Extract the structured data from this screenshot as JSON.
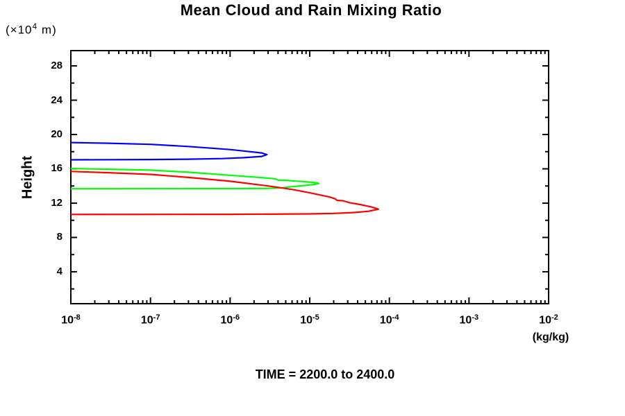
{
  "page": {
    "background": "#ffffff",
    "text_color": "#000000"
  },
  "chart_data": {
    "type": "line",
    "title": "Mean Cloud and Rain Mixing Ratio",
    "caption": "TIME = 2200.0 to 2400.0",
    "ylabel": "Height",
    "y_unit": {
      "pre": "(×10",
      "sup": "4",
      "post": " m)"
    },
    "x_unit": "(kg/kg)",
    "x_scale": "log",
    "xlim_log10": [
      -8,
      -2
    ],
    "x_major_tick_exponents": [
      -8,
      -7,
      -6,
      -5,
      -4,
      -3,
      -2
    ],
    "x_tick_label_base": "10",
    "x_minor_tick_multiples": [
      2,
      3,
      4,
      5,
      6,
      7,
      8,
      9
    ],
    "ylim": [
      0.28,
      29.78
    ],
    "y_major_ticks": [
      4,
      8,
      12,
      16,
      20,
      24,
      28
    ],
    "y_minor_ticks": [
      2,
      6,
      10,
      14,
      18,
      22,
      26
    ],
    "grid": false,
    "legend": "none",
    "frame": "box-with-inward-ticks",
    "axis_color": "#000000",
    "series": [
      {
        "name": "blue-profile",
        "color": "#0000ff",
        "points": [
          [
            1e-08,
            19.06
          ],
          [
            3e-08,
            18.98
          ],
          [
            1e-07,
            18.85
          ],
          [
            3e-07,
            18.6
          ],
          [
            1e-06,
            18.25
          ],
          [
            1.8e-06,
            18.0
          ],
          [
            2.5e-06,
            17.85
          ],
          [
            2.9e-06,
            17.66
          ],
          [
            2.5e-06,
            17.45
          ],
          [
            1.5e-06,
            17.3
          ],
          [
            8e-07,
            17.2
          ],
          [
            3e-07,
            17.12
          ],
          [
            1e-07,
            17.08
          ],
          [
            1e-08,
            17.05
          ]
        ]
      },
      {
        "name": "green-profile",
        "color": "#00ff00",
        "points": [
          [
            1e-08,
            16.03
          ],
          [
            3e-08,
            15.95
          ],
          [
            1e-07,
            15.85
          ],
          [
            3e-07,
            15.6
          ],
          [
            1e-06,
            15.25
          ],
          [
            2e-06,
            15.05
          ],
          [
            3.5e-06,
            14.85
          ],
          [
            3.8e-06,
            14.8
          ],
          [
            4e-06,
            14.68
          ],
          [
            5e-06,
            14.66
          ],
          [
            6e-06,
            14.6
          ],
          [
            8e-06,
            14.52
          ],
          [
            1.1e-05,
            14.42
          ],
          [
            1.3e-05,
            14.3
          ],
          [
            1.15e-05,
            14.18
          ],
          [
            9e-06,
            14.08
          ],
          [
            7e-06,
            13.98
          ],
          [
            5.5e-06,
            13.88
          ],
          [
            4.5e-06,
            13.78
          ],
          [
            3e-06,
            13.72
          ],
          [
            1e-06,
            13.7
          ],
          [
            1e-08,
            13.68
          ]
        ]
      },
      {
        "name": "red-profile",
        "color": "#ff0000",
        "points": [
          [
            1e-08,
            15.7
          ],
          [
            3e-08,
            15.55
          ],
          [
            1e-07,
            15.35
          ],
          [
            3e-07,
            15.0
          ],
          [
            1e-06,
            14.55
          ],
          [
            3e-06,
            14.0
          ],
          [
            6e-06,
            13.6
          ],
          [
            1e-05,
            13.2
          ],
          [
            1.8e-05,
            12.7
          ],
          [
            2.1e-05,
            12.5
          ],
          [
            2.2e-05,
            12.32
          ],
          [
            2.6e-05,
            12.28
          ],
          [
            3.2e-05,
            12.05
          ],
          [
            4.5e-05,
            11.8
          ],
          [
            6e-05,
            11.55
          ],
          [
            7.3e-05,
            11.3
          ],
          [
            5.5e-05,
            11.05
          ],
          [
            3.5e-05,
            10.9
          ],
          [
            2e-05,
            10.8
          ],
          [
            1e-05,
            10.75
          ],
          [
            1e-06,
            10.7
          ],
          [
            1e-08,
            10.68
          ]
        ]
      }
    ]
  }
}
